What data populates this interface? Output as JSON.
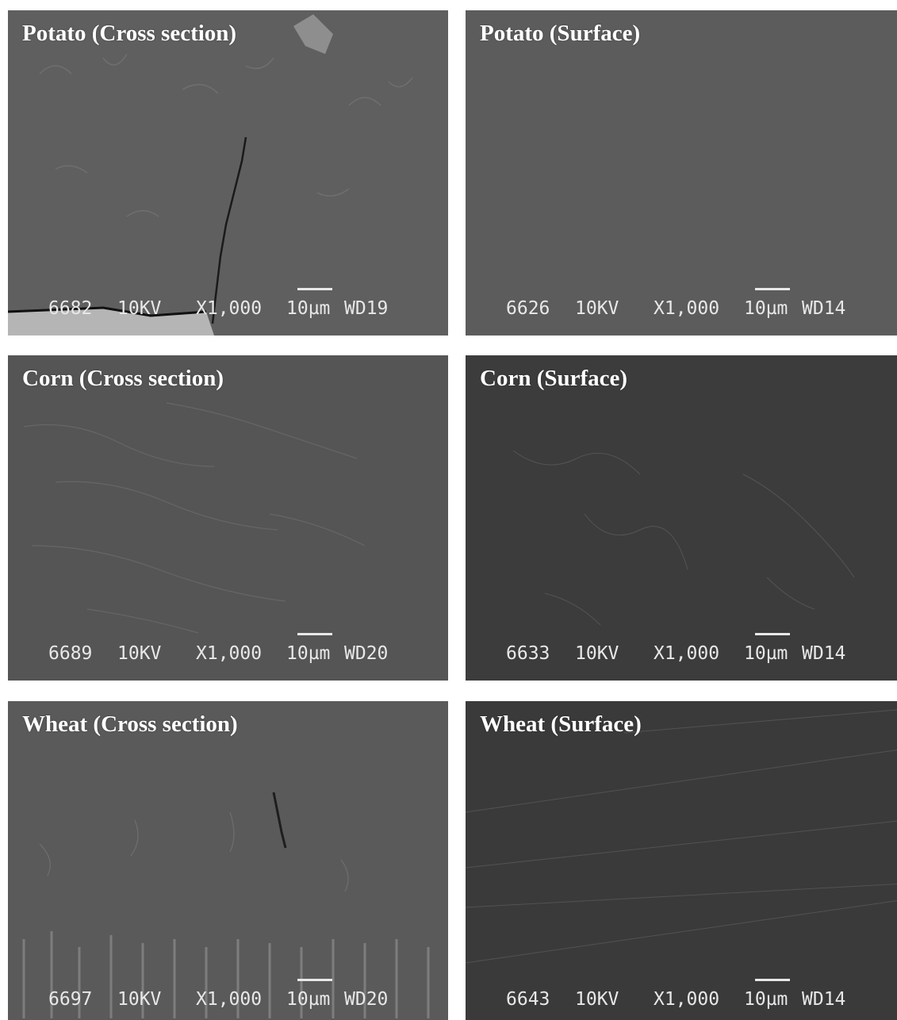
{
  "panels": [
    {
      "title": "Potato (Cross section)",
      "sample_id": "6682",
      "voltage": "10KV",
      "magnification": "X1,000",
      "scale": "10µm",
      "working_distance": "WD19",
      "tone": "#5f5f5f"
    },
    {
      "title": "Potato (Surface)",
      "sample_id": "6626",
      "voltage": "10KV",
      "magnification": "X1,000",
      "scale": "10µm",
      "working_distance": "WD14",
      "tone": "#5c5c5c"
    },
    {
      "title": "Corn (Cross section)",
      "sample_id": "6689",
      "voltage": "10KV",
      "magnification": "X1,000",
      "scale": "10µm",
      "working_distance": "WD20",
      "tone": "#555555"
    },
    {
      "title": "Corn (Surface)",
      "sample_id": "6633",
      "voltage": "10KV",
      "magnification": "X1,000",
      "scale": "10µm",
      "working_distance": "WD14",
      "tone": "#3c3c3c"
    },
    {
      "title": "Wheat (Cross section)",
      "sample_id": "6697",
      "voltage": "10KV",
      "magnification": "X1,000",
      "scale": "10µm",
      "working_distance": "WD20",
      "tone": "#5a5a5a"
    },
    {
      "title": "Wheat (Surface)",
      "sample_id": "6643",
      "voltage": "10KV",
      "magnification": "X1,000",
      "scale": "10µm",
      "working_distance": "WD14",
      "tone": "#3a3a3a"
    }
  ]
}
